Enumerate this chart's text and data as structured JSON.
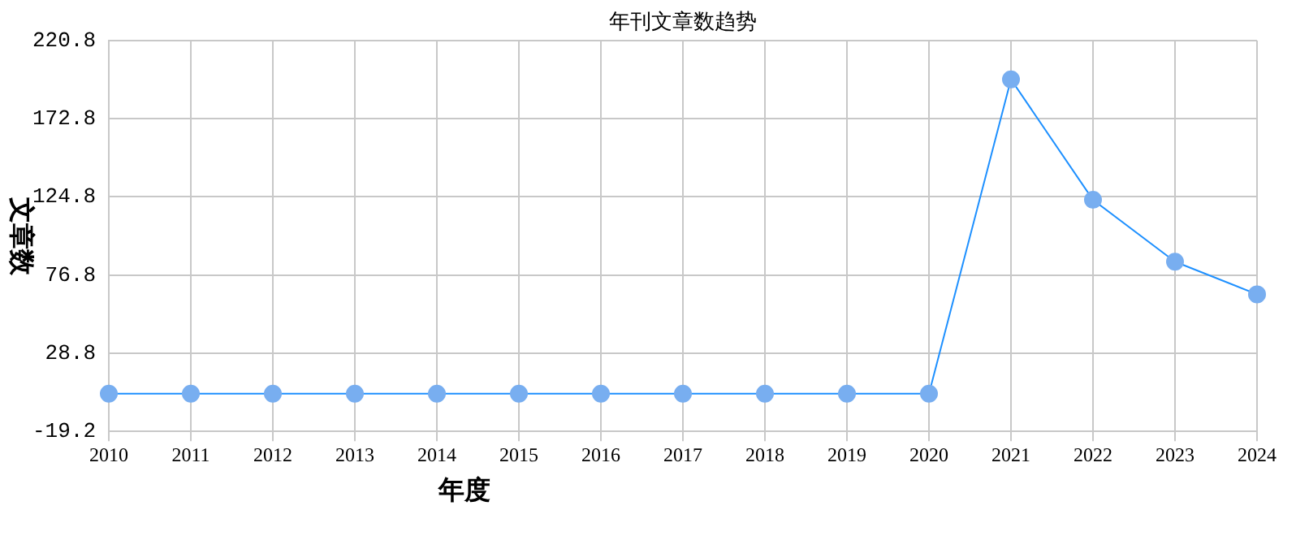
{
  "chart_data": {
    "type": "line",
    "title": "年刊文章数趋势",
    "xlabel": "年度",
    "ylabel": "文章数",
    "categories": [
      "2010",
      "2011",
      "2012",
      "2013",
      "2014",
      "2015",
      "2016",
      "2017",
      "2018",
      "2019",
      "2020",
      "2021",
      "2022",
      "2023",
      "2024"
    ],
    "series": [
      {
        "color": "#1e90ff",
        "values": [
          4,
          4,
          4,
          4,
          4,
          4,
          4,
          4,
          4,
          4,
          4,
          197,
          123,
          85,
          65
        ]
      }
    ],
    "ylim": [
      -19.2,
      220.8
    ],
    "yticks": [
      -19.2,
      28.8,
      76.8,
      124.8,
      172.8,
      220.8
    ],
    "grid": true,
    "marker": "circle",
    "line_style": "solid",
    "legend": false
  }
}
